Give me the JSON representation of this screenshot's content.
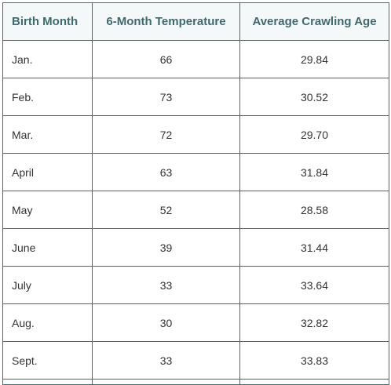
{
  "table": {
    "headers": [
      "Birth Month",
      "6-Month Temperature",
      "Average Crawling Age"
    ],
    "rows": [
      [
        "Jan.",
        "66",
        "29.84"
      ],
      [
        "Feb.",
        "73",
        "30.52"
      ],
      [
        "Mar.",
        "72",
        "29.70"
      ],
      [
        "April",
        "63",
        "31.84"
      ],
      [
        "May",
        "52",
        "28.58"
      ],
      [
        "June",
        "39",
        "31.44"
      ],
      [
        "July",
        "33",
        "33.64"
      ],
      [
        "Aug.",
        "30",
        "32.82"
      ],
      [
        "Sept.",
        "33",
        "33.83"
      ]
    ]
  },
  "colors": {
    "border": "#3f6f70",
    "header_text": "#3e6a6e",
    "cell_text": "#333333"
  }
}
